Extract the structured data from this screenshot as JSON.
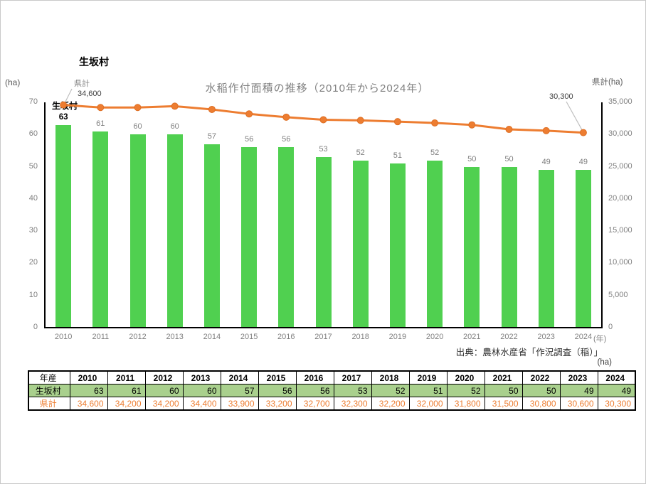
{
  "page": {
    "title_left": "生坂村"
  },
  "chart_data": {
    "type": "bar+line",
    "title": "水稲作付面積の推移（2010年から2024年）",
    "categories": [
      "2010",
      "2011",
      "2012",
      "2013",
      "2014",
      "2015",
      "2016",
      "2017",
      "2018",
      "2019",
      "2020",
      "2021",
      "2022",
      "2023",
      "2024"
    ],
    "series": [
      {
        "name": "生坂村",
        "type": "bar",
        "axis": "left",
        "values": [
          63,
          61,
          60,
          60,
          57,
          56,
          56,
          53,
          52,
          51,
          52,
          50,
          50,
          49,
          49
        ]
      },
      {
        "name": "県計",
        "type": "line",
        "axis": "right",
        "values": [
          34600,
          34200,
          34200,
          34400,
          33900,
          33200,
          32700,
          32300,
          32200,
          32000,
          31800,
          31500,
          30800,
          30600,
          30300
        ],
        "values_formatted": [
          "34,600",
          "34,200",
          "34,200",
          "34,400",
          "33,900",
          "33,200",
          "32,700",
          "32,300",
          "32,200",
          "32,000",
          "31,800",
          "31,500",
          "30,800",
          "30,600",
          "30,300"
        ]
      }
    ],
    "left_axis": {
      "label": "(ha)",
      "min": 0,
      "max": 70,
      "ticks": [
        "0",
        "10",
        "20",
        "30",
        "40",
        "50",
        "60",
        "70"
      ]
    },
    "right_axis": {
      "label": "県計(ha)",
      "min": 0,
      "max": 35000,
      "ticks": [
        "0",
        "5,000",
        "10,000",
        "15,000",
        "20,000",
        "25,000",
        "30,000",
        "35,000"
      ]
    },
    "x_axis_unit": "(年)",
    "grid": false,
    "legend": "inline-annotations",
    "annotations": {
      "kenkei_label": "県計",
      "kenkei_first_value": "34,600",
      "ikusaka_label": "生坂村",
      "last_value": "30,300"
    },
    "colors": {
      "bar": "#50D050",
      "line": "#ED7D31",
      "gray_text": "#808080",
      "table_row_green": "#A9D08D"
    }
  },
  "source": {
    "text": "出典：農林水産省「作況調査（稲）」",
    "unit": "(ha)"
  },
  "table": {
    "header": [
      "年産",
      "2010",
      "2011",
      "2012",
      "2013",
      "2014",
      "2015",
      "2016",
      "2017",
      "2018",
      "2019",
      "2020",
      "2021",
      "2022",
      "2023",
      "2024"
    ],
    "rows": [
      {
        "label": "生坂村",
        "values": [
          "63",
          "61",
          "60",
          "60",
          "57",
          "56",
          "56",
          "53",
          "52",
          "51",
          "52",
          "50",
          "50",
          "49",
          "49"
        ]
      },
      {
        "label": "県計",
        "values": [
          "34,600",
          "34,200",
          "34,200",
          "34,400",
          "33,900",
          "33,200",
          "32,700",
          "32,300",
          "32,200",
          "32,000",
          "31,800",
          "31,500",
          "30,800",
          "30,600",
          "30,300"
        ]
      }
    ]
  }
}
